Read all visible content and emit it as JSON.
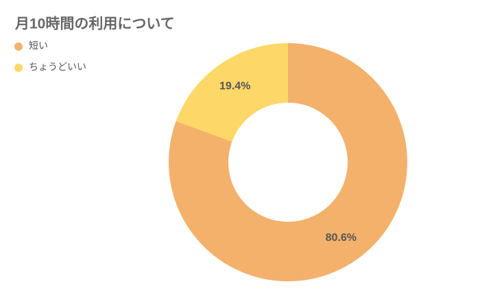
{
  "chart_data": {
    "type": "donut",
    "title": "月10時間の利用について",
    "categories": [
      "短い",
      "ちょうどいい"
    ],
    "values": [
      80.6,
      19.4
    ],
    "value_labels": [
      "80.6%",
      "19.4%"
    ],
    "colors": [
      "#f3b16b",
      "#fdd868"
    ],
    "legend": "top-left"
  }
}
